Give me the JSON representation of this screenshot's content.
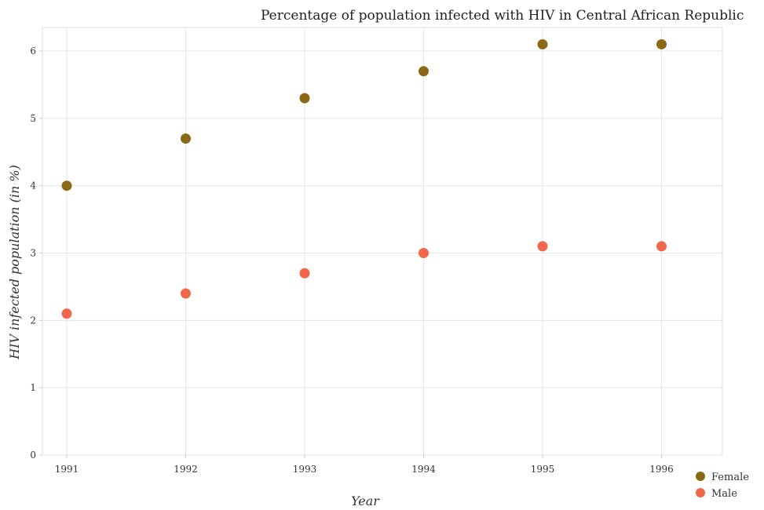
{
  "chart_data": {
    "type": "scatter",
    "title": "Percentage of population infected with HIV in Central African Republic",
    "xlabel": "Year",
    "ylabel": "HIV infected population (in %)",
    "categories": [
      "1991",
      "1992",
      "1993",
      "1994",
      "1995",
      "1996"
    ],
    "y_ticks": [
      "0",
      "1",
      "2",
      "3",
      "4",
      "5",
      "6"
    ],
    "ylim": [
      0,
      6.35
    ],
    "grid": true,
    "legend_position": "bottom-right",
    "series": [
      {
        "name": "Female",
        "color": "#8b6914",
        "values": [
          4.0,
          4.7,
          5.3,
          5.7,
          6.1,
          6.1
        ]
      },
      {
        "name": "Male",
        "color": "#f0674a",
        "values": [
          2.1,
          2.4,
          2.7,
          3.0,
          3.1,
          3.1
        ]
      }
    ]
  }
}
